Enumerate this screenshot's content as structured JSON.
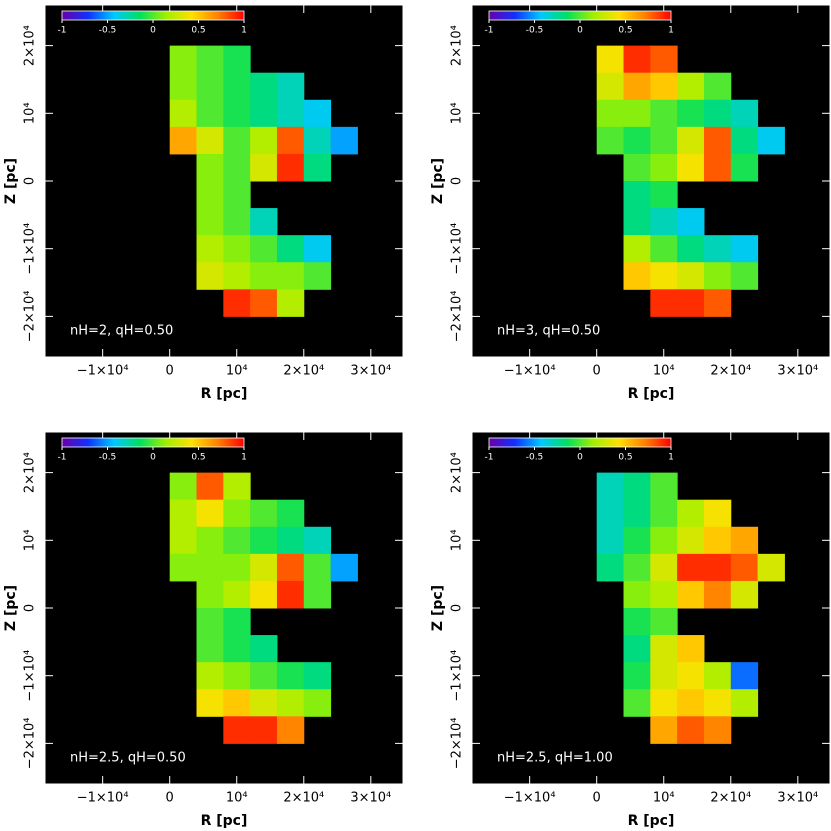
{
  "chart_data": [
    {
      "type": "heatmap",
      "xlabel": "R [pc]",
      "ylabel": "Z [pc]",
      "annotation": "nH=2, qH=0.50",
      "x_edges": [
        0,
        4000,
        8000,
        12000,
        16000,
        20000,
        24000,
        28000
      ],
      "y_edges": [
        20000,
        16000,
        12000,
        8000,
        4000,
        0,
        -4000,
        -8000,
        -12000,
        -16000,
        -20000
      ],
      "values": [
        [
          0.1,
          0.0,
          -0.1,
          null,
          null,
          null,
          null
        ],
        [
          0.1,
          0.0,
          -0.1,
          -0.2,
          -0.3,
          null,
          null
        ],
        [
          0.2,
          0.0,
          -0.1,
          -0.2,
          -0.3,
          -0.4,
          null
        ],
        [
          0.6,
          0.3,
          0.0,
          0.2,
          0.8,
          -0.3,
          -0.5
        ],
        [
          null,
          0.1,
          0.0,
          0.3,
          0.9,
          -0.2,
          null
        ],
        [
          null,
          0.1,
          0.0,
          null,
          null,
          null,
          null
        ],
        [
          null,
          0.1,
          0.0,
          -0.3,
          null,
          null,
          null
        ],
        [
          null,
          0.2,
          0.1,
          0.0,
          -0.2,
          -0.4,
          null
        ],
        [
          null,
          0.3,
          0.2,
          0.1,
          0.1,
          0.0,
          null
        ],
        [
          null,
          null,
          0.9,
          0.8,
          0.2,
          null,
          null
        ]
      ],
      "xlim": [
        -18600,
        34800
      ],
      "ylim": [
        -26000,
        26000
      ],
      "xticks": [
        {
          "value": -10000,
          "label": "−1×10⁴"
        },
        0,
        {
          "value": 10000,
          "label": "10⁴"
        },
        {
          "value": 20000,
          "label": "2×10⁴"
        },
        {
          "value": 30000,
          "label": "3×10⁴"
        }
      ],
      "yticks": [
        {
          "value": -20000,
          "label": "−2×10⁴"
        },
        {
          "value": -10000,
          "label": "−1×10⁴"
        },
        0,
        {
          "value": 10000,
          "label": "10⁴"
        },
        {
          "value": 20000,
          "label": "2×10⁴"
        }
      ],
      "clim": [
        -1,
        1
      ],
      "cticks": [
        -1,
        -0.5,
        0,
        0.5,
        1
      ],
      "colormap": [
        "#6a00a8",
        "#1030ff",
        "#00c8ff",
        "#00e060",
        "#a0f000",
        "#ffe000",
        "#ff8000",
        "#ff0000"
      ]
    },
    {
      "type": "heatmap",
      "xlabel": "R [pc]",
      "ylabel": "Z [pc]",
      "annotation": "nH=3, qH=0.50",
      "x_edges": [
        0,
        4000,
        8000,
        12000,
        16000,
        20000,
        24000,
        28000
      ],
      "y_edges": [
        20000,
        16000,
        12000,
        8000,
        4000,
        0,
        -4000,
        -8000,
        -12000,
        -16000,
        -20000
      ],
      "values": [
        [
          0.4,
          0.9,
          0.8,
          null,
          null,
          null,
          null
        ],
        [
          0.3,
          0.6,
          0.5,
          0.2,
          0.0,
          null,
          null
        ],
        [
          0.1,
          0.1,
          0.0,
          -0.1,
          -0.2,
          -0.3,
          null
        ],
        [
          0.0,
          -0.1,
          0.0,
          0.3,
          0.8,
          -0.2,
          -0.4
        ],
        [
          null,
          0.0,
          0.1,
          0.4,
          0.8,
          -0.1,
          null
        ],
        [
          null,
          -0.2,
          -0.1,
          null,
          null,
          null,
          null
        ],
        [
          null,
          -0.2,
          -0.3,
          -0.4,
          null,
          null,
          null
        ],
        [
          null,
          0.2,
          0.0,
          -0.2,
          -0.3,
          -0.4,
          null
        ],
        [
          null,
          0.5,
          0.4,
          0.3,
          0.1,
          0.0,
          null
        ],
        [
          null,
          null,
          0.9,
          0.9,
          0.8,
          null,
          null
        ]
      ],
      "xlim": [
        -18600,
        34800
      ],
      "ylim": [
        -26000,
        26000
      ],
      "xticks": [
        {
          "value": -10000,
          "label": "−1×10⁴"
        },
        0,
        {
          "value": 10000,
          "label": "10⁴"
        },
        {
          "value": 20000,
          "label": "2×10⁴"
        },
        {
          "value": 30000,
          "label": "3×10⁴"
        }
      ],
      "yticks": [
        {
          "value": -20000,
          "label": "−2×10⁴"
        },
        {
          "value": -10000,
          "label": "−1×10⁴"
        },
        0,
        {
          "value": 10000,
          "label": "10⁴"
        },
        {
          "value": 20000,
          "label": "2×10⁴"
        }
      ],
      "clim": [
        -1,
        1
      ],
      "cticks": [
        -1,
        -0.5,
        0,
        0.5,
        1
      ],
      "colormap": [
        "#6a00a8",
        "#1030ff",
        "#00c8ff",
        "#00e060",
        "#a0f000",
        "#ffe000",
        "#ff8000",
        "#ff0000"
      ]
    },
    {
      "type": "heatmap",
      "xlabel": "R [pc]",
      "ylabel": "Z [pc]",
      "annotation": "nH=2.5, qH=0.50",
      "x_edges": [
        0,
        4000,
        8000,
        12000,
        16000,
        20000,
        24000,
        28000
      ],
      "y_edges": [
        20000,
        16000,
        12000,
        8000,
        4000,
        0,
        -4000,
        -8000,
        -12000,
        -16000,
        -20000
      ],
      "values": [
        [
          0.1,
          0.8,
          0.2,
          null,
          null,
          null,
          null
        ],
        [
          0.2,
          0.4,
          0.1,
          0.0,
          -0.1,
          null,
          null
        ],
        [
          0.2,
          0.1,
          0.0,
          -0.1,
          -0.2,
          -0.3,
          null
        ],
        [
          0.1,
          0.1,
          0.1,
          0.3,
          0.8,
          0.0,
          -0.5
        ],
        [
          null,
          0.1,
          0.2,
          0.4,
          0.9,
          0.0,
          null
        ],
        [
          null,
          0.0,
          -0.1,
          null,
          null,
          null,
          null
        ],
        [
          null,
          0.0,
          -0.1,
          -0.2,
          null,
          null,
          null
        ],
        [
          null,
          0.2,
          0.1,
          0.0,
          -0.1,
          -0.2,
          null
        ],
        [
          null,
          0.4,
          0.5,
          0.3,
          0.2,
          0.1,
          null
        ],
        [
          null,
          null,
          0.9,
          0.9,
          0.7,
          null,
          null
        ]
      ],
      "xlim": [
        -18600,
        34800
      ],
      "ylim": [
        -26000,
        26000
      ],
      "xticks": [
        {
          "value": -10000,
          "label": "−1×10⁴"
        },
        0,
        {
          "value": 10000,
          "label": "10⁴"
        },
        {
          "value": 20000,
          "label": "2×10⁴"
        },
        {
          "value": 30000,
          "label": "3×10⁴"
        }
      ],
      "yticks": [
        {
          "value": -20000,
          "label": "−2×10⁴"
        },
        {
          "value": -10000,
          "label": "−1×10⁴"
        },
        0,
        {
          "value": 10000,
          "label": "10⁴"
        },
        {
          "value": 20000,
          "label": "2×10⁴"
        }
      ],
      "clim": [
        -1,
        1
      ],
      "cticks": [
        -1,
        -0.5,
        0,
        0.5,
        1
      ],
      "colormap": [
        "#6a00a8",
        "#1030ff",
        "#00c8ff",
        "#00e060",
        "#a0f000",
        "#ffe000",
        "#ff8000",
        "#ff0000"
      ]
    },
    {
      "type": "heatmap",
      "xlabel": "R [pc]",
      "ylabel": "Z [pc]",
      "annotation": "nH=2.5, qH=1.00",
      "x_edges": [
        0,
        4000,
        8000,
        12000,
        16000,
        20000,
        24000,
        28000
      ],
      "y_edges": [
        20000,
        16000,
        12000,
        8000,
        4000,
        0,
        -4000,
        -8000,
        -12000,
        -16000,
        -20000
      ],
      "values": [
        [
          -0.3,
          -0.2,
          0.0,
          null,
          null,
          null,
          null
        ],
        [
          -0.3,
          -0.2,
          0.0,
          0.2,
          0.4,
          null,
          null
        ],
        [
          -0.3,
          -0.1,
          0.1,
          0.3,
          0.5,
          0.6,
          null
        ],
        [
          -0.2,
          0.0,
          0.3,
          0.9,
          0.9,
          0.8,
          0.3
        ],
        [
          null,
          0.1,
          0.2,
          0.5,
          0.7,
          0.3,
          null
        ],
        [
          null,
          -0.1,
          0.0,
          null,
          null,
          null,
          null
        ],
        [
          null,
          -0.2,
          0.3,
          0.5,
          null,
          null,
          null
        ],
        [
          null,
          -0.1,
          0.3,
          0.4,
          0.2,
          -0.6,
          null
        ],
        [
          null,
          0.0,
          0.4,
          0.5,
          0.4,
          0.2,
          null
        ],
        [
          null,
          null,
          0.6,
          0.8,
          0.7,
          null,
          null
        ]
      ],
      "xlim": [
        -18600,
        34800
      ],
      "ylim": [
        -26000,
        26000
      ],
      "xticks": [
        {
          "value": -10000,
          "label": "−1×10⁴"
        },
        0,
        {
          "value": 10000,
          "label": "10⁴"
        },
        {
          "value": 20000,
          "label": "2×10⁴"
        },
        {
          "value": 30000,
          "label": "3×10⁴"
        }
      ],
      "yticks": [
        {
          "value": -20000,
          "label": "−2×10⁴"
        },
        {
          "value": -10000,
          "label": "−1×10⁴"
        },
        0,
        {
          "value": 10000,
          "label": "10⁴"
        },
        {
          "value": 20000,
          "label": "2×10⁴"
        }
      ],
      "clim": [
        -1,
        1
      ],
      "cticks": [
        -1,
        -0.5,
        0,
        0.5,
        1
      ],
      "colormap": [
        "#6a00a8",
        "#1030ff",
        "#00c8ff",
        "#00e060",
        "#a0f000",
        "#ffe000",
        "#ff8000",
        "#ff0000"
      ]
    }
  ]
}
